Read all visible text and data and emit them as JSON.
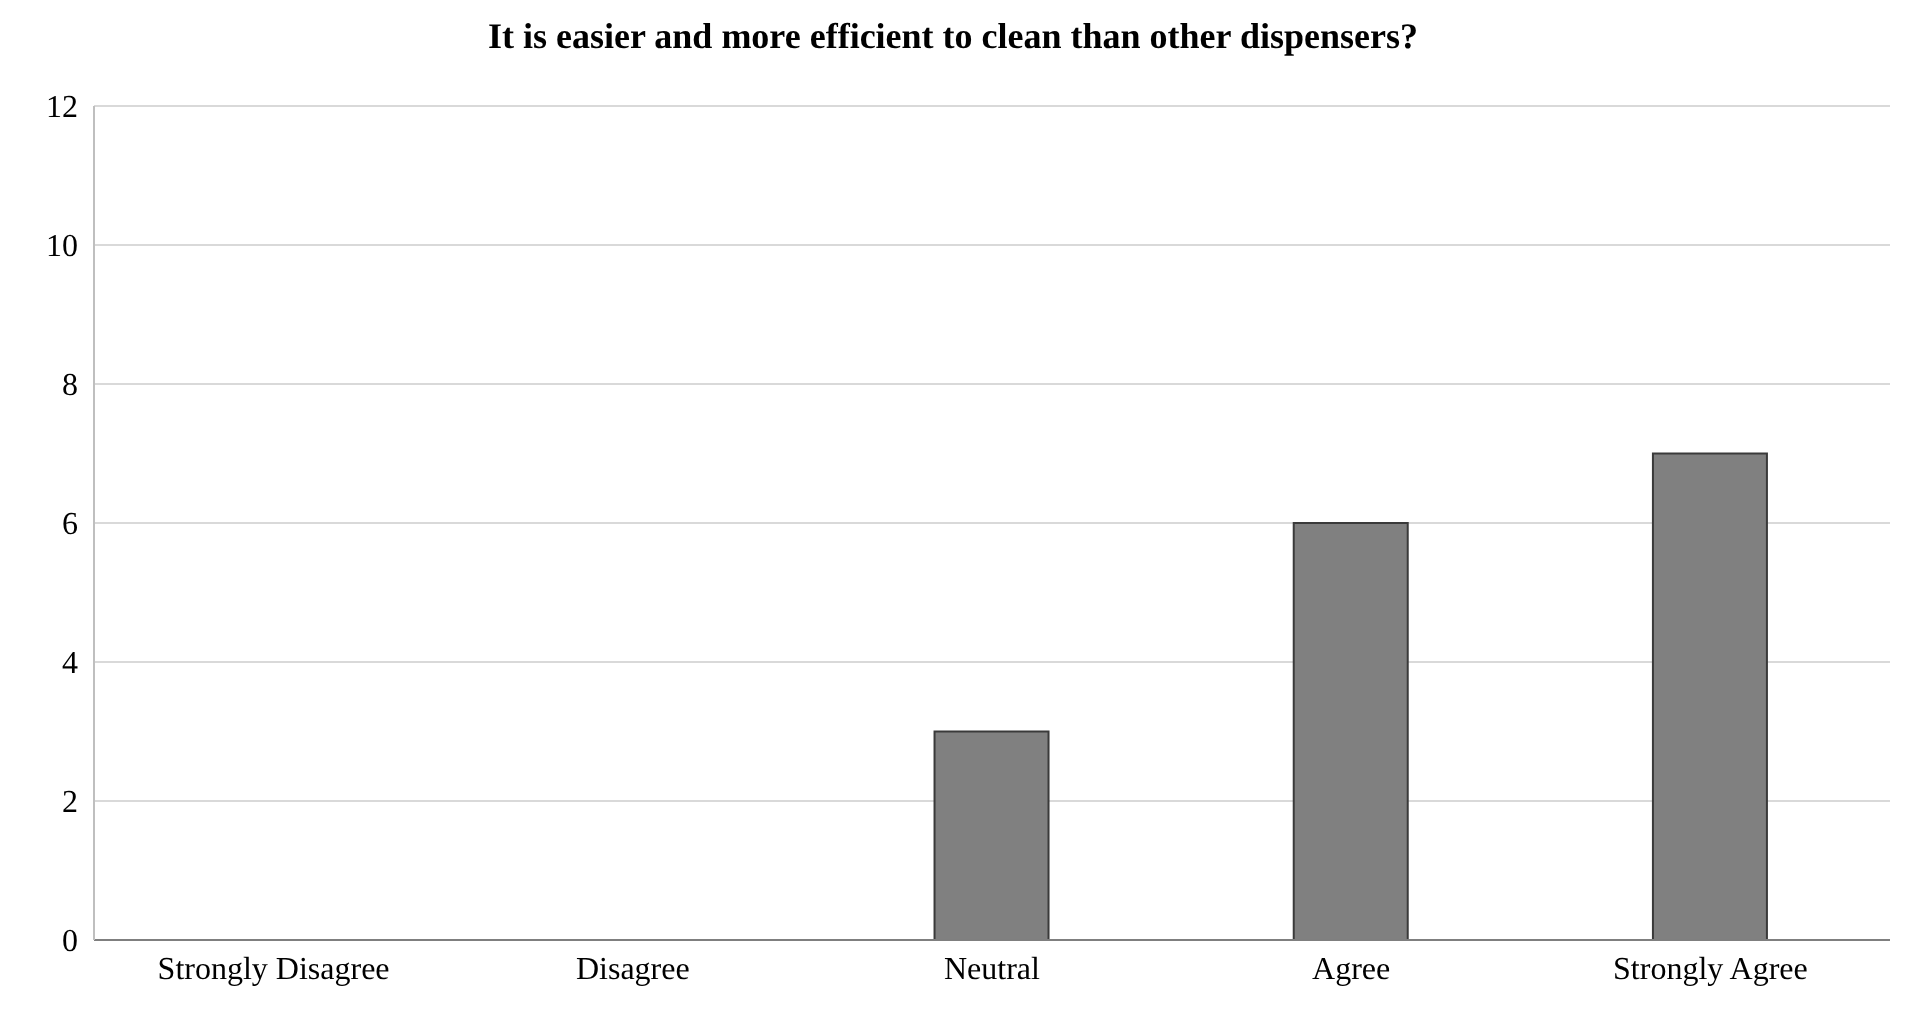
{
  "chart_data": {
    "type": "bar",
    "title": "It is easier and more efficient to clean than other dispensers?",
    "categories": [
      "Strongly Disagree",
      "Disagree",
      "Neutral",
      "Agree",
      "Strongly Agree"
    ],
    "values": [
      0,
      0,
      3,
      6,
      7
    ],
    "color": "#808080",
    "ylim": [
      0,
      12
    ],
    "yticks": [
      0,
      2,
      4,
      6,
      8,
      10,
      12
    ],
    "grid": "y"
  }
}
